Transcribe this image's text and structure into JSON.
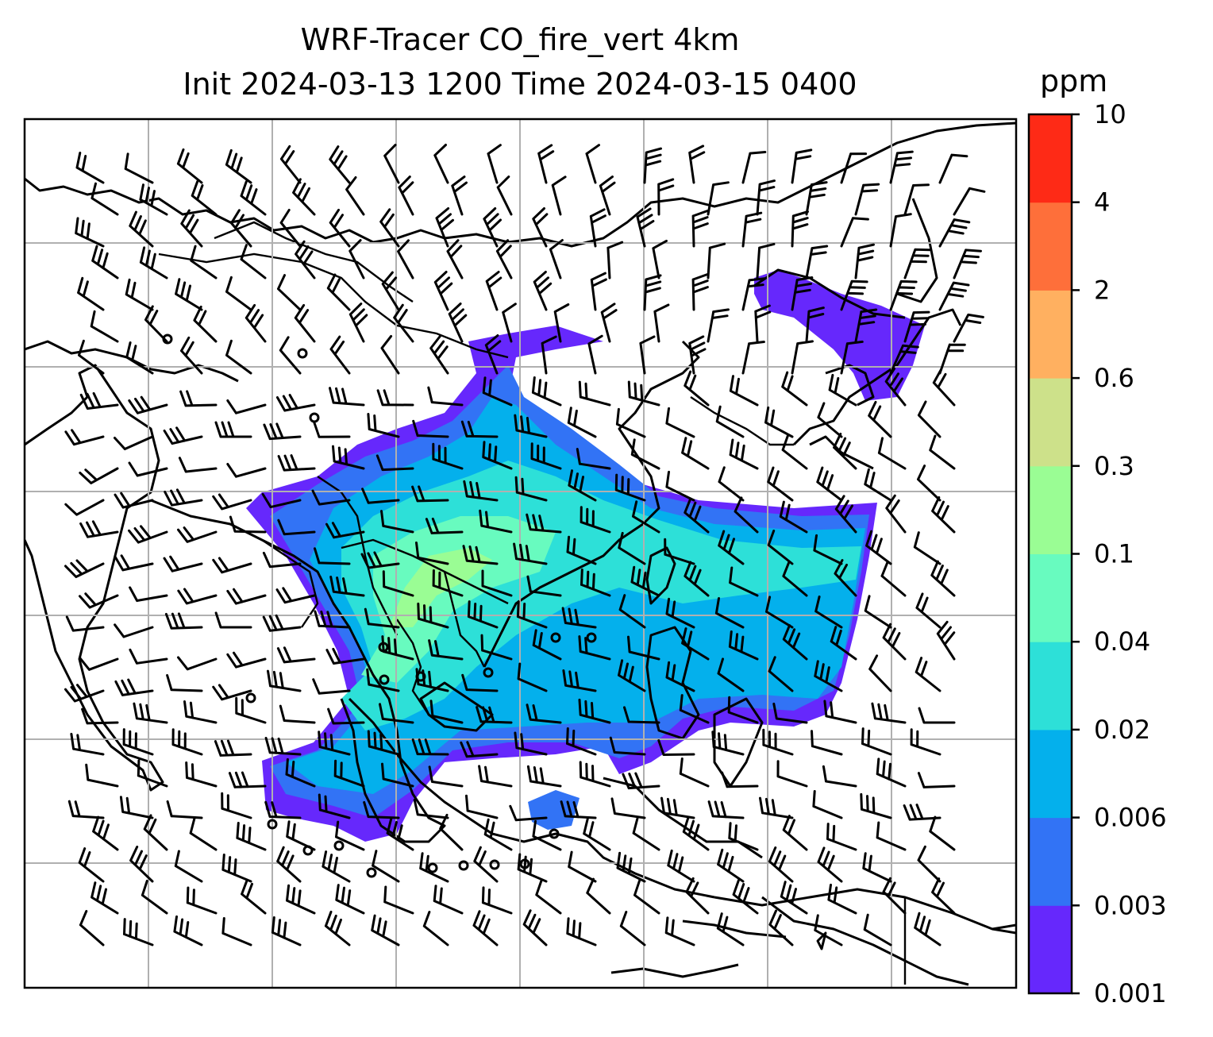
{
  "title_line1": "WRF-Tracer CO_fire_vert 4km",
  "title_line2": "Init 2024-03-13 1200 Time 2024-03-15 0400",
  "colorbar": {
    "units": "ppm",
    "ticks": [
      "0.001",
      "0.003",
      "0.006",
      "0.02",
      "0.04",
      "0.1",
      "0.3",
      "0.6",
      "2",
      "4",
      "10"
    ],
    "colors": [
      "#6628fc",
      "#3273f5",
      "#04b0ec",
      "#2de0d8",
      "#68fbbf",
      "#9afd94",
      "#cde18a",
      "#ffb060",
      "#fe6f3a",
      "#fe2a16"
    ]
  },
  "plume_colors": {
    "outer": "#6628fc",
    "mid": "#3273f5",
    "inner": "#04b0ec",
    "core": "#2de0d8",
    "hot": "#68fbbf",
    "peak": "#9afd94"
  },
  "grid": {
    "lines": true,
    "color": "#b0b0b0"
  }
}
